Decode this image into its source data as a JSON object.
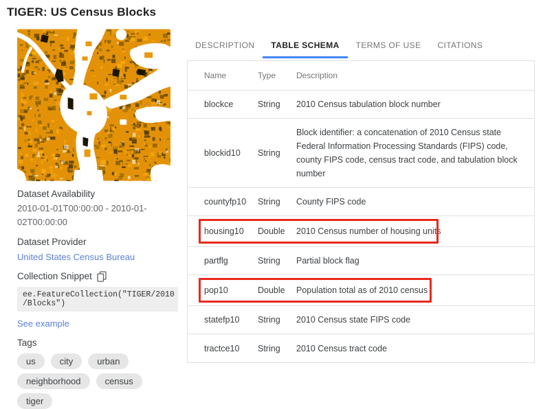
{
  "page": {
    "title": "TIGER: US Census Blocks"
  },
  "sidebar": {
    "availability_label": "Dataset Availability",
    "availability_value": "2010-01-01T00:00:00 - 2010-01-02T00:00:00",
    "provider_label": "Dataset Provider",
    "provider_link": "United States Census Bureau",
    "snippet_label": "Collection Snippet",
    "snippet_code": "ee.FeatureCollection(\"TIGER/2010\n/Blocks\")",
    "see_example_label": "See example",
    "tags_label": "Tags",
    "tags": [
      "us",
      "city",
      "urban",
      "neighborhood",
      "census",
      "tiger"
    ]
  },
  "icons": {
    "copy": "content-copy-icon"
  },
  "tabs": [
    {
      "label": "DESCRIPTION",
      "active": false
    },
    {
      "label": "TABLE SCHEMA",
      "active": true
    },
    {
      "label": "TERMS OF USE",
      "active": false
    },
    {
      "label": "CITATIONS",
      "active": false
    }
  ],
  "table": {
    "columns": [
      "Name",
      "Type",
      "Description"
    ],
    "rows": [
      {
        "name": "blockce",
        "type": "String",
        "description": "2010 Census tabulation block number",
        "highlighted": false
      },
      {
        "name": "blockid10",
        "type": "String",
        "description": "Block identifier: a concatenation of 2010 Census state Federal Information Processing Standards (FIPS) code, county FIPS code, census tract code, and tabulation block number",
        "highlighted": false
      },
      {
        "name": "countyfp10",
        "type": "String",
        "description": "County FIPS code",
        "highlighted": false
      },
      {
        "name": "housing10",
        "type": "Double",
        "description": "2010 Census number of housing units",
        "highlighted": true
      },
      {
        "name": "partflg",
        "type": "String",
        "description": "Partial block flag",
        "highlighted": false
      },
      {
        "name": "pop10",
        "type": "Double",
        "description": "Population total as of 2010 census",
        "highlighted": true
      },
      {
        "name": "statefp10",
        "type": "String",
        "description": "2010 Census state FIPS code",
        "highlighted": false
      },
      {
        "name": "tractce10",
        "type": "String",
        "description": "2010 Census tract code",
        "highlighted": false
      }
    ]
  },
  "colors": {
    "tab_accent_blue": "#4285f4",
    "link_blue": "#5c80d9",
    "highlight_red": "#e8291c",
    "map_orange": "#e39208"
  }
}
